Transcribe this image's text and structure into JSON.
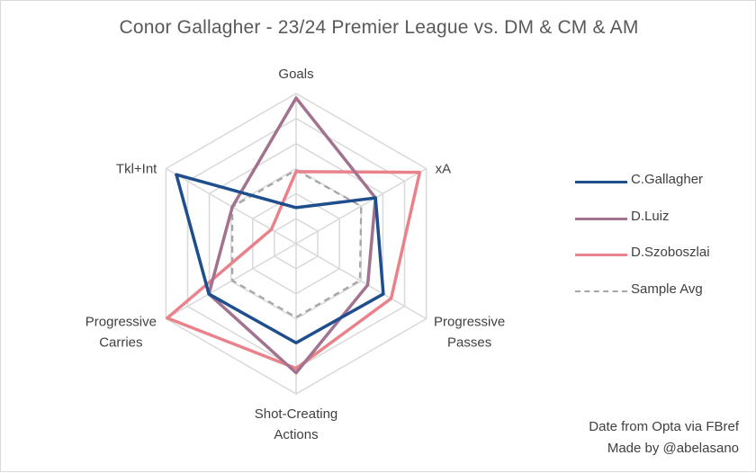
{
  "chart_data": {
    "type": "radar",
    "title": "Conor Gallagher - 23/24 Premier League vs. DM & CM & AM",
    "axes": [
      "Goals",
      "xA",
      "Progressive Passes",
      "Shot-Creating Actions",
      "Progressive Carries",
      "Tkl+Int"
    ],
    "axis_label_lines": [
      [
        "Goals"
      ],
      [
        "xA"
      ],
      [
        "Progressive",
        "Passes"
      ],
      [
        "Shot-Creating",
        "Actions"
      ],
      [
        "Progressive",
        "Carries"
      ],
      [
        "Tkl+Int"
      ]
    ],
    "rlim": [
      0,
      1
    ],
    "grid_levels": 6,
    "series": [
      {
        "name": "C.Gallagher",
        "values": [
          0.24,
          0.61,
          0.67,
          0.66,
          0.67,
          0.92
        ],
        "color": "#1f4e8c",
        "dash": "solid"
      },
      {
        "name": "D.Luiz",
        "values": [
          0.97,
          0.61,
          0.55,
          0.86,
          0.67,
          0.49
        ],
        "color": "#a2728f",
        "dash": "solid"
      },
      {
        "name": "D.Szoboszlai",
        "values": [
          0.48,
          0.95,
          0.73,
          0.83,
          0.99,
          0.19
        ],
        "color": "#e9828b",
        "dash": "dashed-no"
      },
      {
        "name": "Sample Avg",
        "values": [
          0.49,
          0.5,
          0.49,
          0.49,
          0.49,
          0.49
        ],
        "color": "#a6a6a6",
        "dash": "dashed"
      }
    ],
    "legend_position": "right"
  },
  "credit": {
    "line1": "Date from Opta via FBref",
    "line2": "Made by @abelasano"
  }
}
